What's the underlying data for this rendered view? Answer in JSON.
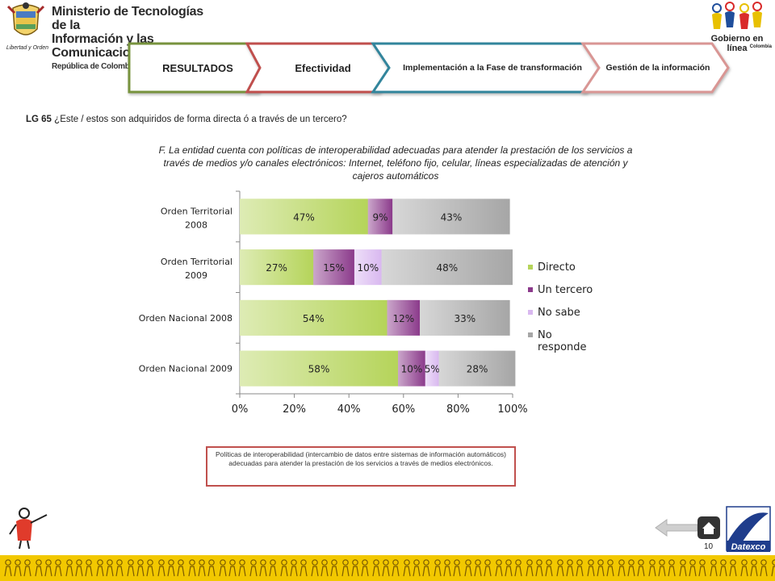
{
  "header": {
    "ministry_line1": "Ministerio de Tecnologías de la",
    "ministry_line2": "Información y las Comunicaciones",
    "ministry_line3": "República de Colombia",
    "motto": "Libertad y Orden",
    "gel_title": "Gobierno en línea",
    "gel_country": "Colombia"
  },
  "tabs": [
    {
      "label": "RESULTADOS",
      "color": "#77933c"
    },
    {
      "label": "Efectividad",
      "color": "#c0504d"
    },
    {
      "label": "Implementación  a la Fase de transformación",
      "color": "#31859c"
    },
    {
      "label": "Gestión de la información",
      "color": "#d99694"
    }
  ],
  "question": {
    "code": "LG 65",
    "text": " ¿Este / estos  son adquiridos de forma directa ó a través de un tercero?"
  },
  "chart_title": "F. La entidad cuenta con  políticas de interoperabilidad adecuadas para atender la prestación de los servicios a través de medios y/o canales electrónicos: Internet, teléfono fijo, celular, líneas especializadas de atención y cajeros automáticos",
  "chart_data": {
    "type": "bar",
    "orientation": "horizontal",
    "stacked": true,
    "categories": [
      "Orden Territorial 2008",
      "Orden Territorial 2009",
      "Orden Nacional 2008",
      "Orden Nacional 2009"
    ],
    "series": [
      {
        "name": "Directo",
        "values": [
          47,
          27,
          54,
          58
        ],
        "labels": [
          "47%",
          "27%",
          "54%",
          "58%"
        ],
        "color": "#b5d45a"
      },
      {
        "name": "Un tercero",
        "values": [
          9,
          15,
          12,
          10
        ],
        "labels": [
          "9%",
          "15%",
          "12%",
          "10%"
        ],
        "color": "#8b3a8b"
      },
      {
        "name": "No sabe",
        "values": [
          0,
          10,
          0,
          5
        ],
        "labels": [
          "",
          "10%",
          "",
          "5%"
        ],
        "color": "#d9b8f0"
      },
      {
        "name": "No responde",
        "values": [
          43,
          48,
          33,
          28
        ],
        "labels": [
          "43%",
          "48%",
          "33%",
          "28%"
        ],
        "color": "#a6a6a6"
      }
    ],
    "xlim": [
      0,
      100
    ],
    "x_ticks": [
      "0%",
      "20%",
      "40%",
      "60%",
      "80%",
      "100%"
    ],
    "legend_position": "right"
  },
  "footnote": "Políticas de interoperabilidad (intercambio de datos entre sistemas de información automáticos) adecuadas para atender la prestación de los servicios a través de medios electrónicos.",
  "page_number": "10",
  "footer_logo": "Datexco"
}
